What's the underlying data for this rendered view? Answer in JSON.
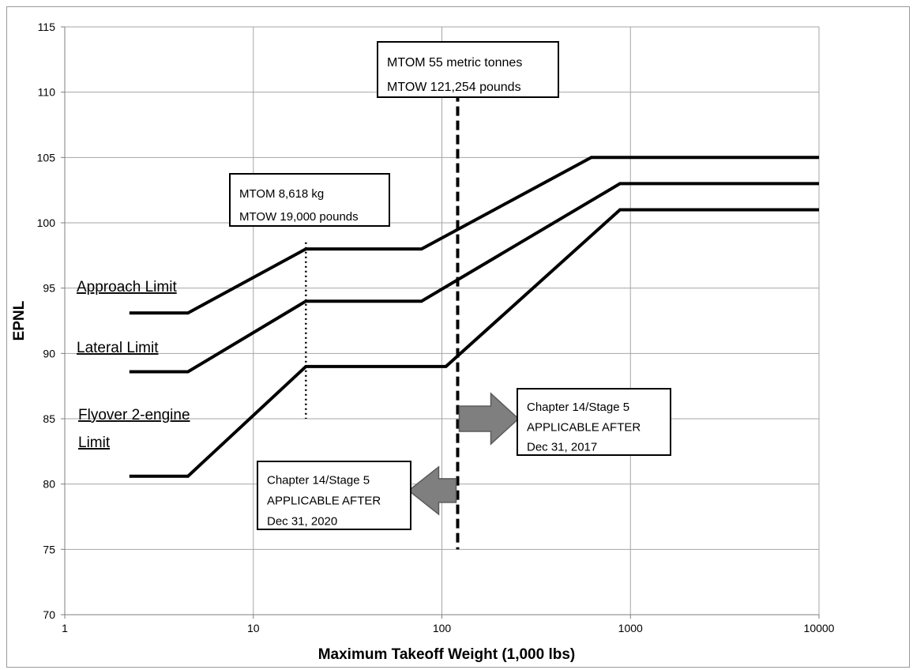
{
  "chart_data": {
    "type": "line",
    "xlabel": "Maximum Takeoff Weight (1,000 lbs)",
    "ylabel": "EPNL",
    "xscale": "log",
    "xlim": [
      1,
      10000
    ],
    "ylim": [
      70,
      115
    ],
    "x_ticks": [
      1,
      10,
      100,
      1000,
      10000
    ],
    "x_tick_labels": [
      "1",
      "10",
      "100",
      "1000",
      "10000"
    ],
    "y_ticks": [
      70,
      75,
      80,
      85,
      90,
      95,
      100,
      105,
      110,
      115
    ],
    "y_tick_labels": [
      "70",
      "75",
      "80",
      "85",
      "90",
      "95",
      "100",
      "105",
      "110",
      "115"
    ],
    "grid": true,
    "series": [
      {
        "name": "Approach Limit",
        "points": [
          [
            2.2,
            93.1
          ],
          [
            4.5,
            93.1
          ],
          [
            19,
            98
          ],
          [
            78,
            98
          ],
          [
            620,
            105
          ],
          [
            10000,
            105
          ]
        ],
        "label_lines": [
          "Approach Limit"
        ]
      },
      {
        "name": "Lateral Limit",
        "points": [
          [
            2.2,
            88.6
          ],
          [
            4.5,
            88.6
          ],
          [
            19,
            94
          ],
          [
            78,
            94
          ],
          [
            880,
            103
          ],
          [
            10000,
            103
          ]
        ],
        "label_lines": [
          "Lateral Limit"
        ]
      },
      {
        "name": "Flyover 2-engine Limit",
        "points": [
          [
            2.2,
            80.6
          ],
          [
            4.5,
            80.6
          ],
          [
            19,
            89
          ],
          [
            105,
            89
          ],
          [
            880,
            101
          ],
          [
            10000,
            101
          ]
        ],
        "label_lines": [
          "Flyover 2-engine",
          "Limit"
        ]
      }
    ],
    "vertical_lines": [
      {
        "name": "mtom-8618",
        "x": 19,
        "y_from": 85,
        "y_to": 98.5,
        "style": "dotted"
      },
      {
        "name": "mtom-55t",
        "x": 121.254,
        "y_from": 75,
        "y_to": 110,
        "style": "dashed"
      }
    ],
    "annotations": [
      {
        "name": "annotation-mtom-55",
        "lines": [
          "MTOM 55 metric tonnes",
          "MTOW 121,254 pounds"
        ]
      },
      {
        "name": "annotation-mtom-8618",
        "lines": [
          "MTOM 8,618 kg",
          "MTOW 19,000 pounds"
        ]
      },
      {
        "name": "annotation-2017",
        "lines": [
          "Chapter 14/Stage 5",
          "APPLICABLE AFTER",
          "Dec 31, 2017"
        ]
      },
      {
        "name": "annotation-2020",
        "lines": [
          "Chapter 14/Stage 5",
          "APPLICABLE AFTER",
          "Dec 31, 2020"
        ]
      }
    ],
    "arrows": [
      {
        "name": "arrow-right-2017",
        "direction": "right",
        "y": 85
      },
      {
        "name": "arrow-left-2020",
        "direction": "left",
        "y": 79.5
      }
    ]
  }
}
